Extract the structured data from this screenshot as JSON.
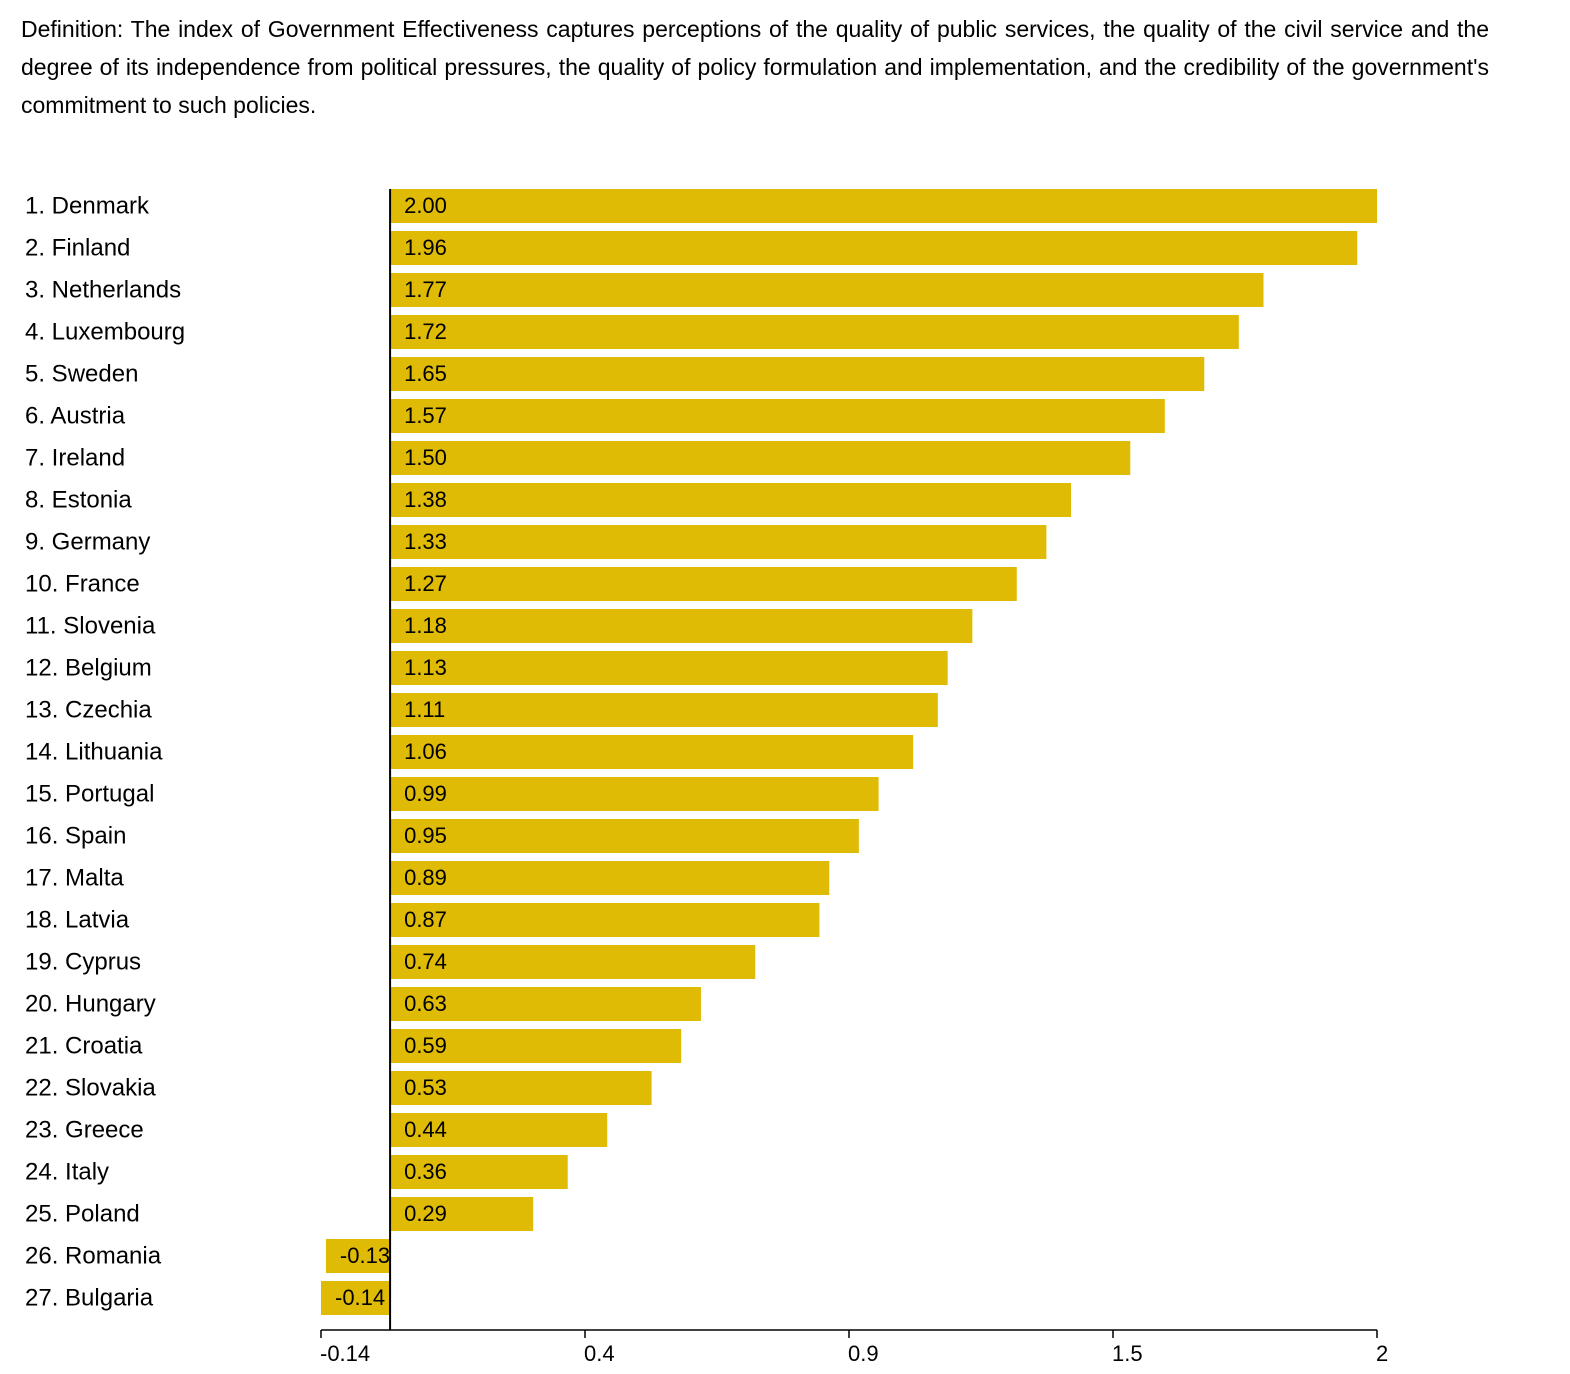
{
  "definition": "Definition: The index of Government Effectiveness captures perceptions of the quality of public services, the quality of the civil service and the degree of its independence from political pressures, the quality of policy formulation and implementation, and the credibility of the government's commitment to such policies.",
  "chart_data": {
    "type": "hbar",
    "categories": [
      "1. Denmark",
      "2. Finland",
      "3. Netherlands",
      "4. Luxembourg",
      "5. Sweden",
      "6. Austria",
      "7. Ireland",
      "8. Estonia",
      "9. Germany",
      "10. France",
      "11. Slovenia",
      "12. Belgium",
      "13. Czechia",
      "14. Lithuania",
      "15. Portugal",
      "16. Spain",
      "17. Malta",
      "18. Latvia",
      "19. Cyprus",
      "20. Hungary",
      "21. Croatia",
      "22. Slovakia",
      "23. Greece",
      "24. Italy",
      "25. Poland",
      "26. Romania",
      "27. Bulgaria"
    ],
    "values": [
      2.0,
      1.96,
      1.77,
      1.72,
      1.65,
      1.57,
      1.5,
      1.38,
      1.33,
      1.27,
      1.18,
      1.13,
      1.11,
      1.06,
      0.99,
      0.95,
      0.89,
      0.87,
      0.74,
      0.63,
      0.59,
      0.53,
      0.44,
      0.36,
      0.29,
      -0.13,
      -0.14
    ],
    "value_labels": [
      "2.00",
      "1.96",
      "1.77",
      "1.72",
      "1.65",
      "1.57",
      "1.50",
      "1.38",
      "1.33",
      "1.27",
      "1.18",
      "1.13",
      "1.11",
      "1.06",
      "0.99",
      "0.95",
      "0.89",
      "0.87",
      "0.74",
      "0.63",
      "0.59",
      "0.53",
      "0.44",
      "0.36",
      "0.29",
      "-0.13",
      "-0.14"
    ],
    "color": "#e0bb05",
    "xlim": [
      -0.14,
      2
    ],
    "xticks": [
      -0.14,
      {
        "value": 0.395,
        "label": "0.4"
      },
      {
        "value": 0.93,
        "label": "0.9"
      },
      {
        "value": 1.465,
        "label": "1.5"
      },
      2
    ]
  }
}
